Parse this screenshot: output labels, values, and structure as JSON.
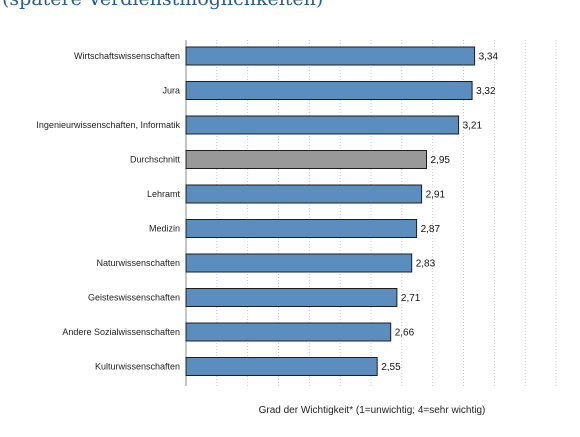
{
  "title": "(spätere Verdienstmöglichkeiten)",
  "chart_data": {
    "type": "bar",
    "orientation": "horizontal",
    "categories": [
      "Wirtschaftswissenschaften",
      "Jura",
      "Ingenieurwissenschaften, Informatik",
      "Durchschnitt",
      "Lehramt",
      "Medizin",
      "Naturwissenschaften",
      "Geisteswissenschaften",
      "Andere Sozialwissenschaften",
      "Kulturwissenschaften"
    ],
    "values": [
      3.34,
      3.32,
      3.21,
      2.95,
      2.91,
      2.87,
      2.83,
      2.71,
      2.66,
      2.55
    ],
    "value_labels": [
      "3,34",
      "3,32",
      "3,21",
      "2,95",
      "2,91",
      "2,87",
      "2,83",
      "2,71",
      "2,66",
      "2,55"
    ],
    "highlight_category": "Durchschnitt",
    "xlabel": "Grad der Wichtigkeit* (1=unwichtig; 4=sehr wichtig)",
    "xlim": [
      1,
      4
    ],
    "grid": true,
    "colors": {
      "bar": "#5b8dbe",
      "highlight": "#999999",
      "bar_stroke": "#1e1e1e",
      "grid": "#bbbbbb"
    }
  }
}
